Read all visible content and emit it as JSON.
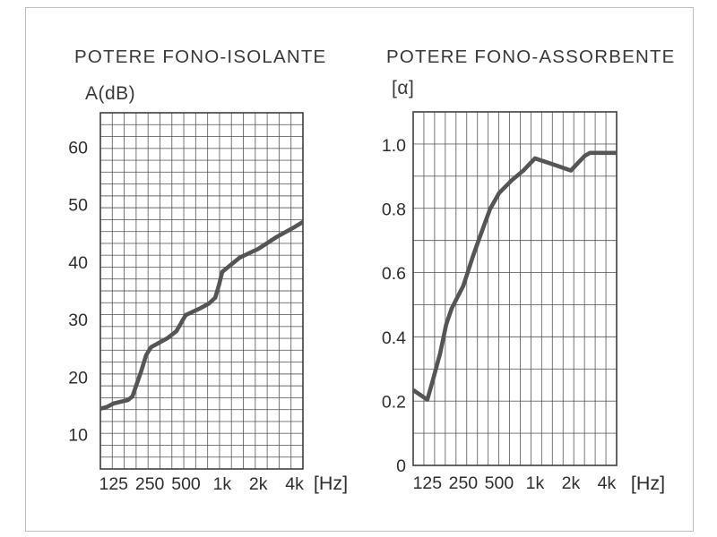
{
  "page": {
    "colors": {
      "background": "#ffffff",
      "page_border": "#bdbdbd",
      "grid": "#4e4e4e",
      "frame": "#3f3f3f",
      "curve": "#555555",
      "text": "#2e2e2e"
    }
  },
  "chart_data": [
    {
      "type": "line",
      "title": "POTERE FONO-ISOLANTE",
      "ylabel": "A(dB)",
      "xlabel": "[Hz]",
      "x_scale": "log-octave",
      "grid": true,
      "legend": "none",
      "x_range_hz": [
        97,
        4700
      ],
      "y_range": [
        4,
        66
      ],
      "x_ticks": [
        {
          "f": 125,
          "label": "125"
        },
        {
          "f": 250,
          "label": "250"
        },
        {
          "f": 500,
          "label": "500"
        },
        {
          "f": 1000,
          "label": "1k"
        },
        {
          "f": 2000,
          "label": "2k"
        },
        {
          "f": 4000,
          "label": "4k"
        }
      ],
      "y_ticks": [
        {
          "v": 10,
          "label": "10"
        },
        {
          "v": 20,
          "label": "20"
        },
        {
          "v": 30,
          "label": "30"
        },
        {
          "v": 40,
          "label": "40"
        },
        {
          "v": 50,
          "label": "50"
        },
        {
          "v": 60,
          "label": "60"
        }
      ],
      "points": [
        [
          97,
          14.5
        ],
        [
          110,
          14.8
        ],
        [
          125,
          15.4
        ],
        [
          150,
          15.8
        ],
        [
          164,
          16.0
        ],
        [
          179,
          16.6
        ],
        [
          212,
          21.0
        ],
        [
          233,
          23.8
        ],
        [
          256,
          25.2
        ],
        [
          300,
          26.0
        ],
        [
          353,
          26.8
        ],
        [
          417,
          28.0
        ],
        [
          497,
          30.8
        ],
        [
          560,
          31.3
        ],
        [
          660,
          32.0
        ],
        [
          777,
          32.8
        ],
        [
          875,
          33.8
        ],
        [
          940,
          36.0
        ],
        [
          1000,
          38.3
        ],
        [
          1400,
          40.8
        ],
        [
          2000,
          42.3
        ],
        [
          2800,
          44.3
        ],
        [
          4000,
          46.1
        ],
        [
          4700,
          47.0
        ]
      ]
    },
    {
      "type": "line",
      "title": "POTERE FONO-ASSORBENTE",
      "ylabel": "[α]",
      "xlabel": "[Hz]",
      "x_scale": "log-octave",
      "grid": true,
      "legend": "none",
      "x_range_hz": [
        95,
        4840
      ],
      "y_range": [
        0,
        1.103
      ],
      "x_ticks": [
        {
          "f": 125,
          "label": "125"
        },
        {
          "f": 250,
          "label": "250"
        },
        {
          "f": 500,
          "label": "500"
        },
        {
          "f": 1000,
          "label": "1k"
        },
        {
          "f": 2000,
          "label": "2k"
        },
        {
          "f": 4000,
          "label": "4k"
        }
      ],
      "y_ticks": [
        {
          "v": 0,
          "label": "0"
        },
        {
          "v": 0.2,
          "label": "0.2"
        },
        {
          "v": 0.4,
          "label": "0.4"
        },
        {
          "v": 0.6,
          "label": "0.6"
        },
        {
          "v": 0.8,
          "label": "0.8"
        },
        {
          "v": 1.0,
          "label": "1.0"
        }
      ],
      "points": [
        [
          95,
          0.235
        ],
        [
          125,
          0.205
        ],
        [
          140,
          0.27
        ],
        [
          160,
          0.35
        ],
        [
          180,
          0.44
        ],
        [
          200,
          0.49
        ],
        [
          250,
          0.56
        ],
        [
          300,
          0.65
        ],
        [
          350,
          0.72
        ],
        [
          420,
          0.8
        ],
        [
          500,
          0.85
        ],
        [
          640,
          0.89
        ],
        [
          800,
          0.92
        ],
        [
          1000,
          0.958
        ],
        [
          1400,
          0.94
        ],
        [
          2000,
          0.92
        ],
        [
          2600,
          0.965
        ],
        [
          2900,
          0.975
        ],
        [
          4840,
          0.975
        ]
      ]
    }
  ]
}
